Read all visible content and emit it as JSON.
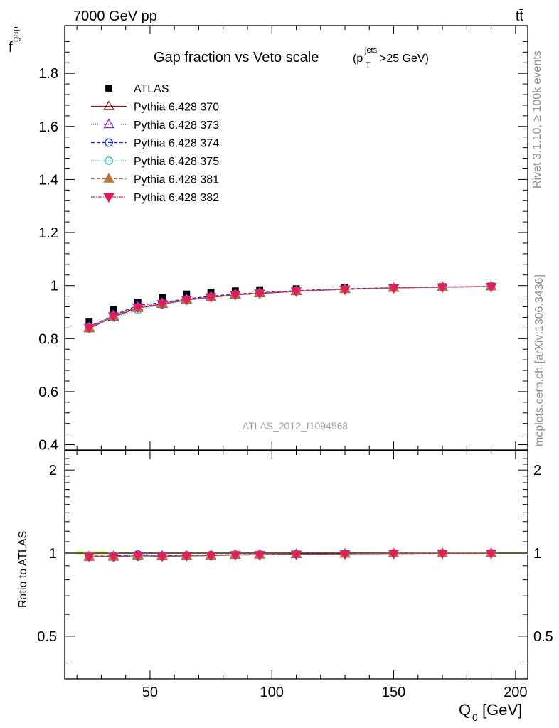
{
  "header": {
    "energy": "7000 GeV pp",
    "process": "tt̄"
  },
  "side_labels": {
    "rivet": "Rivet 3.1.10, ≥ 100k events",
    "mcplots": "mcplots.cern.ch [arXiv:1306.3436]"
  },
  "watermark": "ATLAS_2012_I1094568",
  "chart_data": {
    "type": "scatter",
    "title": "Gap fraction vs Veto scale",
    "title_cut": {
      "prefix": "(p",
      "sup": "jets",
      "sub": "T",
      "suffix": ">25 GeV)"
    },
    "xlabel_main": "Q",
    "xlabel_sub": "0",
    "xlabel_unit": "[GeV]",
    "ylabel_main": "f",
    "ylabel_sub": "gap",
    "ratio_ylabel": "Ratio to ATLAS",
    "xlim": [
      15,
      205
    ],
    "ylim": [
      0.38,
      1.98
    ],
    "ratio_ylim": [
      0.35,
      2.35
    ],
    "x_ticks": [
      "50",
      "100",
      "150",
      "200"
    ],
    "y_ticks": [
      "0.4",
      "0.6",
      "0.8",
      "1",
      "1.2",
      "1.4",
      "1.6",
      "1.8"
    ],
    "ratio_ticks": [
      "0.5",
      "1",
      "2"
    ],
    "x": [
      25,
      35,
      45,
      55,
      65,
      75,
      85,
      95,
      110,
      130,
      150,
      170,
      190
    ],
    "data": {
      "name": "ATLAS",
      "values": [
        0.865,
        0.91,
        0.935,
        0.955,
        0.968,
        0.975,
        0.98,
        0.984,
        0.988,
        0.992,
        0.994,
        0.996,
        0.998
      ]
    },
    "series": [
      {
        "name": "Pythia 6.428 370",
        "color": "#8b1a1a",
        "marker": "triangle-open",
        "dash": "solid",
        "values": [
          0.838,
          0.882,
          0.915,
          0.93,
          0.945,
          0.955,
          0.965,
          0.97,
          0.978,
          0.986,
          0.991,
          0.994,
          0.996
        ]
      },
      {
        "name": "Pythia 6.428 373",
        "color": "#8a2be2",
        "marker": "triangle-open",
        "dash": "1,2",
        "values": [
          0.842,
          0.887,
          0.92,
          0.934,
          0.948,
          0.958,
          0.967,
          0.972,
          0.98,
          0.987,
          0.991,
          0.995,
          0.997
        ]
      },
      {
        "name": "Pythia 6.428 374",
        "color": "#1515e6",
        "marker": "circle-open",
        "dash": "5,3",
        "values": [
          0.845,
          0.888,
          0.925,
          0.936,
          0.95,
          0.96,
          0.968,
          0.973,
          0.981,
          0.988,
          0.992,
          0.995,
          0.997
        ]
      },
      {
        "name": "Pythia 6.428 375",
        "color": "#20c0c0",
        "marker": "circle-open",
        "dash": "1,2",
        "values": [
          0.842,
          0.88,
          0.908,
          0.928,
          0.944,
          0.956,
          0.965,
          0.971,
          0.979,
          0.986,
          0.991,
          0.994,
          0.996
        ]
      },
      {
        "name": "Pythia 6.428 381",
        "color": "#b87333",
        "marker": "triangle-filled",
        "dash": "5,3",
        "values": [
          0.84,
          0.884,
          0.916,
          0.931,
          0.946,
          0.957,
          0.966,
          0.971,
          0.979,
          0.986,
          0.991,
          0.994,
          0.996
        ]
      },
      {
        "name": "Pythia 6.428 382",
        "color": "#e0205a",
        "marker": "triangle-down-filled",
        "dash": "5,2,1,2",
        "values": [
          0.841,
          0.885,
          0.918,
          0.932,
          0.947,
          0.957,
          0.966,
          0.971,
          0.979,
          0.986,
          0.991,
          0.994,
          0.996
        ]
      }
    ],
    "grid": false,
    "legend_position": "top-left"
  }
}
